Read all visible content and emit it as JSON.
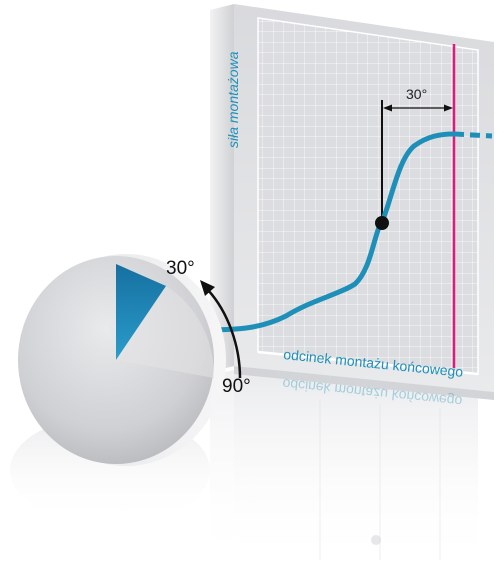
{
  "diagram": {
    "y_axis_label": "siła montażowa",
    "x_axis_label": "odcinek montażu końcowego",
    "reflection_label": "odcinek montażu końcowego",
    "offset_angle_label": "30°",
    "disk_angle_start_label": "30°",
    "disk_angle_end_label": "90°"
  },
  "colors": {
    "curve": "#1e8fb8",
    "limit_line": "#e0197d",
    "grid": "#ffffff",
    "panel": "#e4e5e7",
    "sector": "#1676a6",
    "marker": "#111111"
  }
}
